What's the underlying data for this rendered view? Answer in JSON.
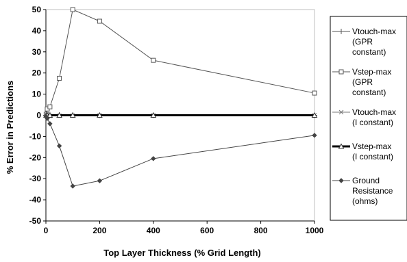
{
  "chart_data": {
    "type": "line",
    "xlabel": "Top Layer Thickness (% Grid Length)",
    "ylabel": "% Error in Predictions",
    "xlim": [
      0,
      1000
    ],
    "ylim": [
      -50,
      50
    ],
    "x_ticks": [
      "0",
      "200",
      "400",
      "600",
      "800",
      "1000"
    ],
    "y_ticks": [
      "50",
      "40",
      "30",
      "20",
      "10",
      "0",
      "-10",
      "-20",
      "-30",
      "-40",
      "-50"
    ],
    "grid": false,
    "legend_position": "right",
    "x": [
      1,
      5,
      15,
      50,
      100,
      200,
      400,
      1000
    ],
    "series": [
      {
        "name_lines": [
          "Vtouch-max",
          "(GPR",
          "constant)"
        ],
        "marker": "plus",
        "color": "#555555",
        "stroke_width": 1,
        "values": [
          0,
          0.3,
          0.3,
          0.2,
          0.1,
          0,
          0,
          0
        ]
      },
      {
        "name_lines": [
          "Vstep-max",
          "(GPR",
          "constant)"
        ],
        "marker": "square",
        "color": "#555555",
        "stroke_width": 1,
        "values": [
          0.5,
          3,
          4,
          17.5,
          50,
          44.5,
          26,
          10.5
        ]
      },
      {
        "name_lines": [
          "Vtouch-max",
          "(I constant)"
        ],
        "marker": "x",
        "color": "#777777",
        "stroke_width": 1,
        "values": [
          0,
          -0.2,
          -0.3,
          -0.2,
          -0.1,
          0,
          0,
          0
        ]
      },
      {
        "name_lines": [
          "Vstep-max",
          "(I constant)"
        ],
        "marker": "triangle",
        "color": "#000000",
        "stroke_width": 3,
        "values": [
          0,
          0,
          0,
          0,
          0,
          0,
          0,
          0
        ]
      },
      {
        "name_lines": [
          "Ground",
          "Resistance",
          "(ohms)"
        ],
        "marker": "diamond",
        "color": "#444444",
        "stroke_width": 1,
        "values": [
          -0.5,
          -1.5,
          -4,
          -14.5,
          -33.5,
          -31,
          -20.5,
          -9.5
        ]
      }
    ]
  }
}
